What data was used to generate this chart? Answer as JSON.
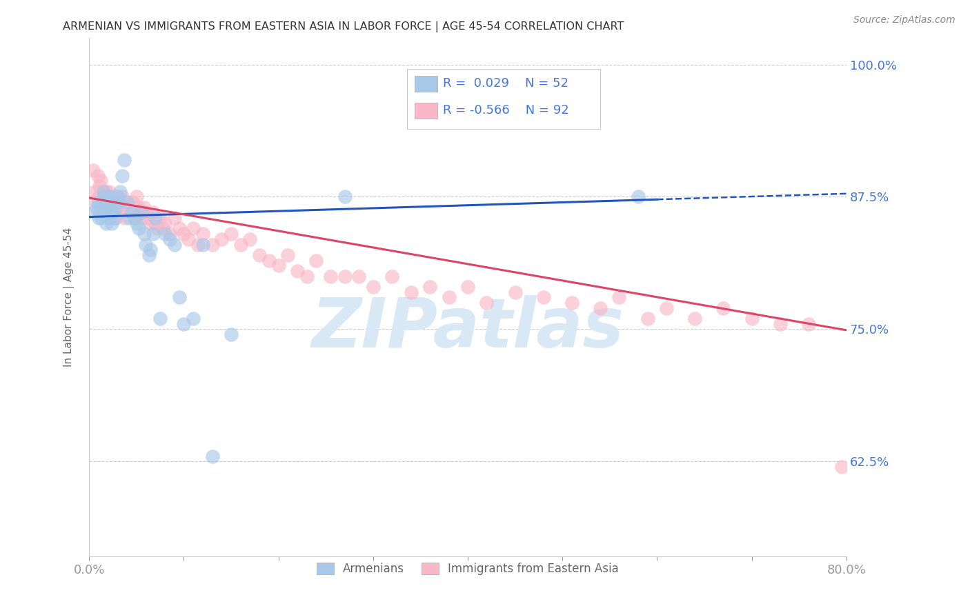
{
  "title": "ARMENIAN VS IMMIGRANTS FROM EASTERN ASIA IN LABOR FORCE | AGE 45-54 CORRELATION CHART",
  "source": "Source: ZipAtlas.com",
  "ylabel": "In Labor Force | Age 45-54",
  "R_blue": 0.029,
  "N_blue": 52,
  "R_pink": -0.566,
  "N_pink": 92,
  "blue_color": "#a8c8e8",
  "pink_color": "#f8b8c8",
  "blue_line_color": "#2255bb",
  "pink_line_color": "#dd4466",
  "xmin": 0.0,
  "xmax": 0.8,
  "ymin": 0.535,
  "ymax": 1.025,
  "yticks": [
    0.625,
    0.75,
    0.875,
    1.0
  ],
  "ytick_labels": [
    "62.5%",
    "75.0%",
    "87.5%",
    "100.0%"
  ],
  "background_color": "#ffffff",
  "grid_color": "#cccccc",
  "title_color": "#333333",
  "axis_label_color": "#666666",
  "tick_label_color": "#4477dd",
  "watermark_color": "#d8e8f4",
  "armenians_x": [
    0.005,
    0.008,
    0.01,
    0.01,
    0.011,
    0.012,
    0.013,
    0.014,
    0.015,
    0.016,
    0.017,
    0.018,
    0.019,
    0.02,
    0.021,
    0.022,
    0.023,
    0.024,
    0.025,
    0.026,
    0.027,
    0.028,
    0.03,
    0.031,
    0.033,
    0.035,
    0.037,
    0.04,
    0.042,
    0.045,
    0.048,
    0.05,
    0.052,
    0.055,
    0.058,
    0.06,
    0.063,
    0.065,
    0.068,
    0.07,
    0.075,
    0.08,
    0.085,
    0.09,
    0.095,
    0.1,
    0.11,
    0.12,
    0.13,
    0.15,
    0.27,
    0.58
  ],
  "armenians_y": [
    0.86,
    0.865,
    0.87,
    0.855,
    0.86,
    0.865,
    0.855,
    0.87,
    0.88,
    0.875,
    0.86,
    0.85,
    0.87,
    0.86,
    0.855,
    0.875,
    0.865,
    0.85,
    0.86,
    0.87,
    0.855,
    0.865,
    0.875,
    0.87,
    0.88,
    0.895,
    0.91,
    0.87,
    0.855,
    0.86,
    0.855,
    0.85,
    0.845,
    0.86,
    0.84,
    0.83,
    0.82,
    0.825,
    0.84,
    0.855,
    0.76,
    0.84,
    0.835,
    0.83,
    0.78,
    0.755,
    0.76,
    0.83,
    0.63,
    0.745,
    0.875,
    0.875
  ],
  "eastern_asia_x": [
    0.004,
    0.006,
    0.008,
    0.009,
    0.01,
    0.011,
    0.012,
    0.013,
    0.014,
    0.015,
    0.016,
    0.017,
    0.018,
    0.019,
    0.02,
    0.021,
    0.022,
    0.023,
    0.024,
    0.025,
    0.026,
    0.027,
    0.028,
    0.029,
    0.03,
    0.032,
    0.034,
    0.035,
    0.036,
    0.038,
    0.04,
    0.042,
    0.044,
    0.046,
    0.048,
    0.05,
    0.052,
    0.054,
    0.056,
    0.058,
    0.06,
    0.062,
    0.065,
    0.068,
    0.07,
    0.072,
    0.075,
    0.078,
    0.08,
    0.085,
    0.09,
    0.095,
    0.1,
    0.105,
    0.11,
    0.115,
    0.12,
    0.13,
    0.14,
    0.15,
    0.16,
    0.17,
    0.18,
    0.19,
    0.2,
    0.21,
    0.22,
    0.23,
    0.24,
    0.255,
    0.27,
    0.285,
    0.3,
    0.32,
    0.34,
    0.36,
    0.38,
    0.4,
    0.42,
    0.45,
    0.48,
    0.51,
    0.54,
    0.56,
    0.59,
    0.61,
    0.64,
    0.67,
    0.7,
    0.73,
    0.76,
    0.795
  ],
  "eastern_asia_y": [
    0.9,
    0.88,
    0.87,
    0.895,
    0.875,
    0.885,
    0.89,
    0.875,
    0.87,
    0.88,
    0.875,
    0.865,
    0.88,
    0.87,
    0.875,
    0.88,
    0.87,
    0.865,
    0.87,
    0.875,
    0.86,
    0.87,
    0.855,
    0.875,
    0.87,
    0.86,
    0.865,
    0.875,
    0.87,
    0.855,
    0.87,
    0.865,
    0.86,
    0.87,
    0.855,
    0.875,
    0.865,
    0.86,
    0.855,
    0.865,
    0.86,
    0.855,
    0.85,
    0.86,
    0.85,
    0.845,
    0.855,
    0.845,
    0.85,
    0.84,
    0.855,
    0.845,
    0.84,
    0.835,
    0.845,
    0.83,
    0.84,
    0.83,
    0.835,
    0.84,
    0.83,
    0.835,
    0.82,
    0.815,
    0.81,
    0.82,
    0.805,
    0.8,
    0.815,
    0.8,
    0.8,
    0.8,
    0.79,
    0.8,
    0.785,
    0.79,
    0.78,
    0.79,
    0.775,
    0.785,
    0.78,
    0.775,
    0.77,
    0.78,
    0.76,
    0.77,
    0.76,
    0.77,
    0.76,
    0.755,
    0.755,
    0.62
  ],
  "blue_trend_start": 0.0,
  "blue_trend_solid_end": 0.6,
  "blue_trend_end": 0.8,
  "pink_trend_start": 0.0,
  "pink_trend_end": 0.8,
  "blue_trend_y_at_0": 0.856,
  "blue_trend_y_at_08": 0.878,
  "pink_trend_y_at_0": 0.874,
  "pink_trend_y_at_08": 0.749
}
